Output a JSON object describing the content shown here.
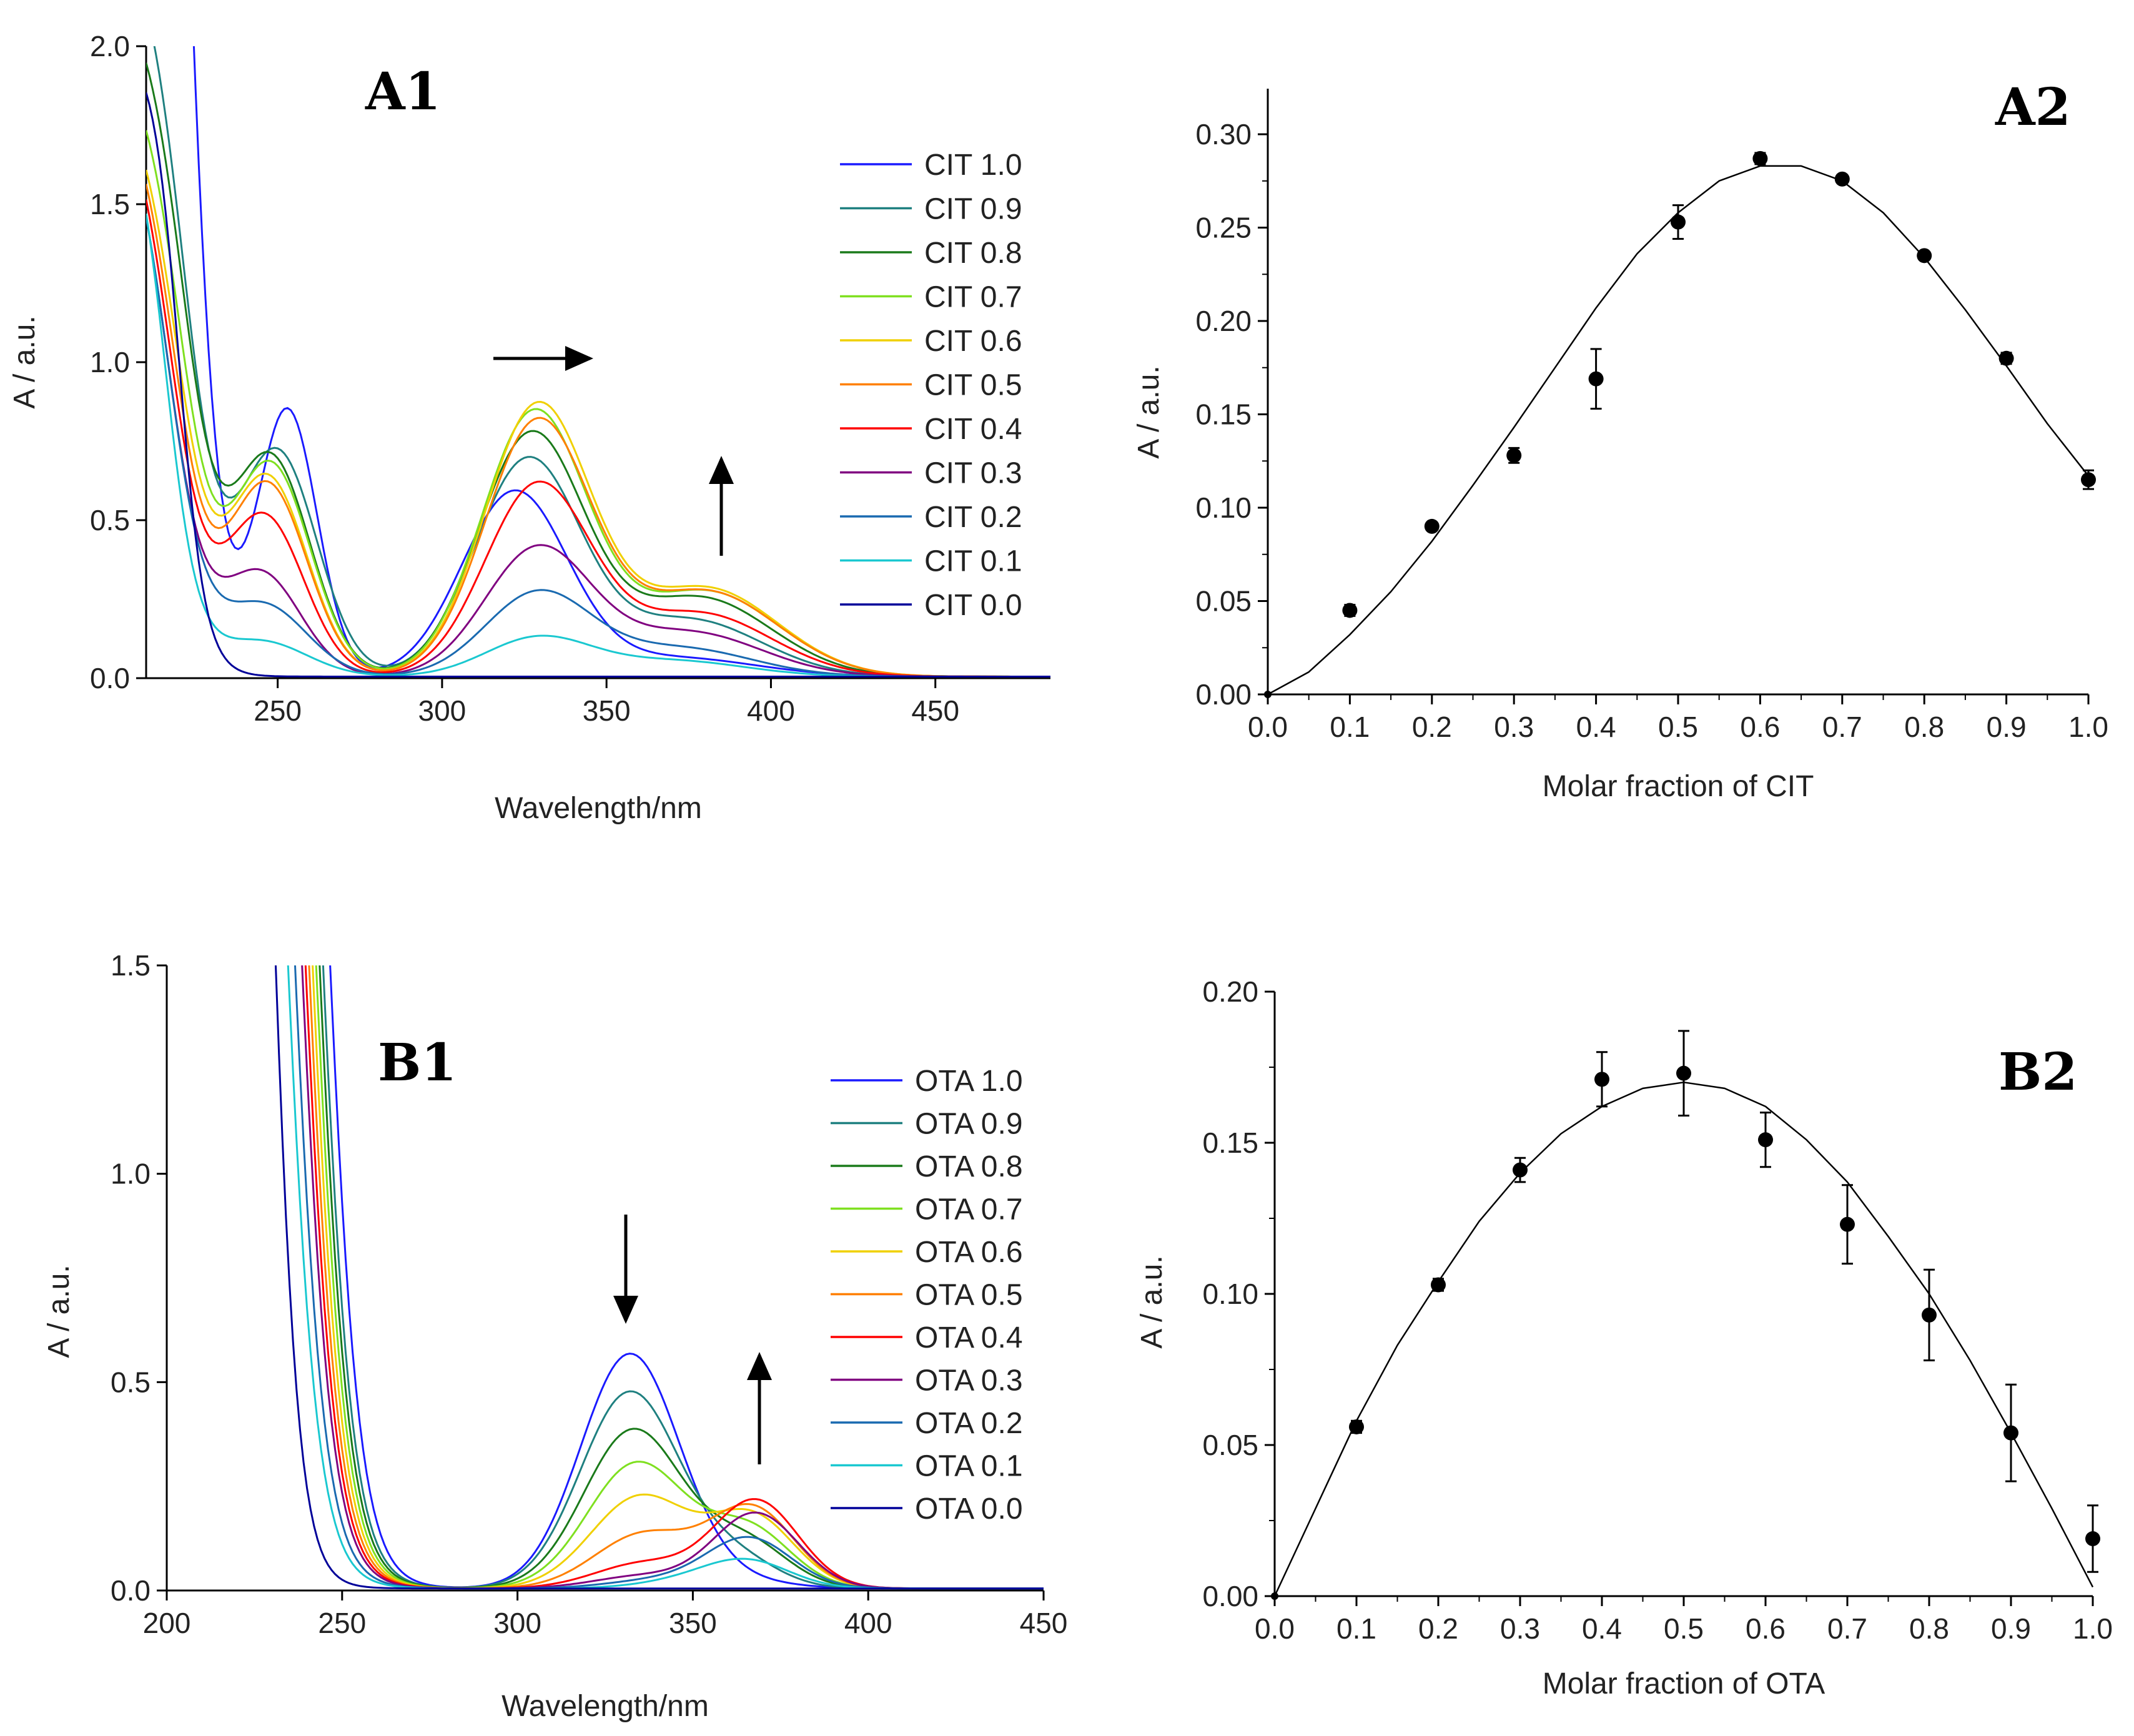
{
  "chart_data": [
    {
      "id": "A1",
      "type": "line",
      "panel_label": "A1",
      "xlabel": "Wavelength/nm",
      "ylabel": "A / a.u.",
      "xlim": [
        210,
        485
      ],
      "ylim": [
        0,
        2.0
      ],
      "xticks": [
        250,
        300,
        350,
        400,
        450
      ],
      "yticks": [
        0.0,
        0.5,
        1.0,
        1.5,
        2.0
      ],
      "ytick_labels": [
        "0.0",
        "0.5",
        "1.0",
        "1.5",
        "2.0"
      ],
      "legend_position": "right",
      "annotations": [
        "arrow-right at ~330 nm peak (red shift)",
        "arrow-up at ~380 nm"
      ],
      "series": [
        {
          "name": "CIT 1.0",
          "color": "#1a1aff",
          "edge": [
            6,
            221,
            5
          ],
          "peaks": [
            [
              253,
              0.84,
              9
            ],
            [
              322,
              0.58,
              16
            ],
            [
              370,
              0.06,
              25
            ]
          ]
        },
        {
          "name": "CIT 0.9",
          "color": "#1f8080",
          "edge": [
            2.4,
            222,
            6
          ],
          "peaks": [
            [
              250,
              0.7,
              12
            ],
            [
              326,
              0.68,
              16
            ],
            [
              375,
              0.18,
              22
            ]
          ]
        },
        {
          "name": "CIT 0.8",
          "color": "#1a7a1a",
          "edge": [
            2.2,
            222,
            6
          ],
          "peaks": [
            [
              248,
              0.68,
              12
            ],
            [
              327,
              0.76,
              16
            ],
            [
              378,
              0.25,
              22
            ]
          ]
        },
        {
          "name": "CIT 0.7",
          "color": "#7fe020",
          "edge": [
            2.0,
            221,
            6
          ],
          "peaks": [
            [
              248,
              0.66,
              12
            ],
            [
              328,
              0.83,
              16
            ],
            [
              380,
              0.27,
              22
            ]
          ]
        },
        {
          "name": "CIT 0.6",
          "color": "#f0d000",
          "edge": [
            1.9,
            220,
            6
          ],
          "peaks": [
            [
              247,
              0.62,
              12
            ],
            [
              329,
              0.85,
              16
            ],
            [
              380,
              0.28,
              22
            ]
          ]
        },
        {
          "name": "CIT 0.5",
          "color": "#ff8000",
          "edge": [
            1.9,
            219,
            6
          ],
          "peaks": [
            [
              247,
              0.6,
              12
            ],
            [
              329,
              0.8,
              16
            ],
            [
              380,
              0.27,
              22
            ]
          ]
        },
        {
          "name": "CIT 0.4",
          "color": "#ff0000",
          "edge": [
            1.9,
            218,
            6
          ],
          "peaks": [
            [
              246,
              0.5,
              12
            ],
            [
              329,
              0.6,
              16
            ],
            [
              378,
              0.2,
              22
            ]
          ]
        },
        {
          "name": "CIT 0.3",
          "color": "#800080",
          "edge": [
            1.9,
            217,
            6
          ],
          "peaks": [
            [
              245,
              0.32,
              12
            ],
            [
              329,
              0.4,
              16
            ],
            [
              375,
              0.14,
              22
            ]
          ]
        },
        {
          "name": "CIT 0.2",
          "color": "#1a6ab0",
          "edge": [
            1.9,
            217,
            6
          ],
          "peaks": [
            [
              246,
              0.22,
              13
            ],
            [
              329,
              0.26,
              16
            ],
            [
              372,
              0.09,
              22
            ]
          ]
        },
        {
          "name": "CIT 0.1",
          "color": "#1ac8d0",
          "edge": [
            1.9,
            216,
            5
          ],
          "peaks": [
            [
              245,
              0.11,
              14
            ],
            [
              329,
              0.12,
              16
            ],
            [
              370,
              0.05,
              22
            ]
          ]
        },
        {
          "name": "CIT 0.0",
          "color": "#000099",
          "edge": [
            2.0,
            220,
            4
          ],
          "peaks": []
        }
      ]
    },
    {
      "id": "A2",
      "type": "scatter",
      "panel_label": "A2",
      "xlabel": "Molar fraction of CIT",
      "ylabel": "A / a.u.",
      "xlim": [
        0,
        1.0
      ],
      "ylim": [
        0,
        0.325
      ],
      "xticks": [
        0,
        0.1,
        0.2,
        0.3,
        0.4,
        0.5,
        0.6,
        0.7,
        0.8,
        0.9,
        1.0
      ],
      "xtick_labels": [
        "0.0",
        "0.1",
        "0.2",
        "0.3",
        "0.4",
        "0.5",
        "0.6",
        "0.7",
        "0.8",
        "0.9",
        "1.0"
      ],
      "yticks": [
        0,
        0.05,
        0.1,
        0.15,
        0.2,
        0.25,
        0.3
      ],
      "ytick_labels": [
        "0.00",
        "0.05",
        "0.10",
        "0.15",
        "0.20",
        "0.25",
        "0.30"
      ],
      "points": {
        "x": [
          0,
          0.1,
          0.2,
          0.3,
          0.4,
          0.5,
          0.6,
          0.7,
          0.8,
          0.9,
          1.0
        ],
        "y": [
          0,
          0.045,
          0.09,
          0.128,
          0.169,
          0.253,
          0.287,
          0.276,
          0.235,
          0.18,
          0.115
        ],
        "err": [
          0,
          0.003,
          0.002,
          0.004,
          0.016,
          0.009,
          0.003,
          0.002,
          0.002,
          0.003,
          0.005
        ]
      },
      "fit": {
        "x": [
          0,
          0.05,
          0.1,
          0.15,
          0.2,
          0.25,
          0.3,
          0.35,
          0.4,
          0.45,
          0.5,
          0.55,
          0.6,
          0.65,
          0.7,
          0.75,
          0.8,
          0.85,
          0.9,
          0.95,
          1.0
        ],
        "y": [
          0,
          0.012,
          0.032,
          0.055,
          0.082,
          0.112,
          0.143,
          0.175,
          0.207,
          0.236,
          0.258,
          0.275,
          0.283,
          0.283,
          0.275,
          0.258,
          0.234,
          0.206,
          0.176,
          0.145,
          0.117
        ]
      }
    },
    {
      "id": "B1",
      "type": "line",
      "panel_label": "B1",
      "xlabel": "Wavelength/nm",
      "ylabel": "A / a.u.",
      "xlim": [
        200,
        450
      ],
      "ylim": [
        0,
        1.5
      ],
      "xticks": [
        200,
        250,
        300,
        350,
        400,
        450
      ],
      "yticks": [
        0.0,
        0.5,
        1.0,
        1.5
      ],
      "ytick_labels": [
        "0.0",
        "0.5",
        "1.0",
        "1.5"
      ],
      "legend_position": "right",
      "annotations": [
        "arrow-down at ~332 nm",
        "arrow-up at ~368 nm"
      ],
      "series": [
        {
          "name": "OTA 1.0",
          "color": "#1a1aff",
          "edge": [
            4,
            244,
            5
          ],
          "peaks": [
            [
              332,
              0.56,
              14
            ],
            [
              360,
              0.02,
              15
            ]
          ]
        },
        {
          "name": "OTA 0.9",
          "color": "#1f8080",
          "edge": [
            4,
            242,
            5
          ],
          "peaks": [
            [
              332,
              0.47,
              14
            ],
            [
              362,
              0.07,
              12
            ]
          ]
        },
        {
          "name": "OTA 0.8",
          "color": "#1a7a1a",
          "edge": [
            4,
            241,
            5
          ],
          "peaks": [
            [
              333,
              0.38,
              14
            ],
            [
              365,
              0.11,
              12
            ]
          ]
        },
        {
          "name": "OTA 0.7",
          "color": "#7fe020",
          "edge": [
            4,
            240,
            5
          ],
          "peaks": [
            [
              334,
              0.3,
              14
            ],
            [
              366,
              0.14,
              12
            ]
          ]
        },
        {
          "name": "OTA 0.6",
          "color": "#f0d000",
          "edge": [
            4,
            239,
            5
          ],
          "peaks": [
            [
              335,
              0.22,
              14
            ],
            [
              367,
              0.17,
              12
            ]
          ]
        },
        {
          "name": "OTA 0.5",
          "color": "#ff8000",
          "edge": [
            4,
            238,
            5
          ],
          "peaks": [
            [
              336,
              0.13,
              14
            ],
            [
              367,
              0.19,
              12
            ]
          ]
        },
        {
          "name": "OTA 0.4",
          "color": "#ff0000",
          "edge": [
            4,
            237,
            5
          ],
          "peaks": [
            [
              336,
              0.06,
              14
            ],
            [
              368,
              0.21,
              12
            ]
          ]
        },
        {
          "name": "OTA 0.3",
          "color": "#800080",
          "edge": [
            4,
            236,
            5
          ],
          "peaks": [
            [
              336,
              0.03,
              14
            ],
            [
              368,
              0.18,
              12
            ]
          ]
        },
        {
          "name": "OTA 0.2",
          "color": "#1a6ab0",
          "edge": [
            4,
            234,
            5
          ],
          "peaks": [
            [
              340,
              0.02,
              14
            ],
            [
              366,
              0.12,
              12
            ]
          ]
        },
        {
          "name": "OTA 0.1",
          "color": "#1ac8d0",
          "edge": [
            4,
            232,
            5
          ],
          "peaks": [
            [
              350,
              0.02,
              14
            ],
            [
              366,
              0.06,
              12
            ]
          ]
        },
        {
          "name": "OTA 0.0",
          "color": "#000099",
          "edge": [
            4,
            229,
            4
          ],
          "peaks": []
        }
      ]
    },
    {
      "id": "B2",
      "type": "scatter",
      "panel_label": "B2",
      "xlabel": "Molar fraction of OTA",
      "ylabel": "A / a.u.",
      "xlim": [
        0,
        1.0
      ],
      "ylim": [
        0,
        0.2
      ],
      "xticks": [
        0,
        0.1,
        0.2,
        0.3,
        0.4,
        0.5,
        0.6,
        0.7,
        0.8,
        0.9,
        1.0
      ],
      "xtick_labels": [
        "0.0",
        "0.1",
        "0.2",
        "0.3",
        "0.4",
        "0.5",
        "0.6",
        "0.7",
        "0.8",
        "0.9",
        "1.0"
      ],
      "yticks": [
        0,
        0.05,
        0.1,
        0.15,
        0.2
      ],
      "ytick_labels": [
        "0.00",
        "0.05",
        "0.10",
        "0.15",
        "0.20"
      ],
      "points": {
        "x": [
          0,
          0.1,
          0.2,
          0.3,
          0.4,
          0.5,
          0.6,
          0.7,
          0.8,
          0.9,
          1.0
        ],
        "y": [
          0,
          0.056,
          0.103,
          0.141,
          0.171,
          0.173,
          0.151,
          0.123,
          0.093,
          0.054,
          0.019
        ],
        "err": [
          0,
          0.002,
          0.002,
          0.004,
          0.009,
          0.014,
          0.009,
          0.013,
          0.015,
          0.016,
          0.011
        ]
      },
      "fit": {
        "x": [
          0,
          0.05,
          0.1,
          0.15,
          0.2,
          0.25,
          0.3,
          0.35,
          0.4,
          0.45,
          0.5,
          0.55,
          0.6,
          0.65,
          0.7,
          0.75,
          0.8,
          0.85,
          0.9,
          0.95,
          1.0
        ],
        "y": [
          0,
          0.029,
          0.058,
          0.083,
          0.104,
          0.124,
          0.14,
          0.153,
          0.162,
          0.168,
          0.17,
          0.168,
          0.162,
          0.151,
          0.137,
          0.119,
          0.1,
          0.078,
          0.054,
          0.029,
          0.003
        ]
      }
    }
  ]
}
